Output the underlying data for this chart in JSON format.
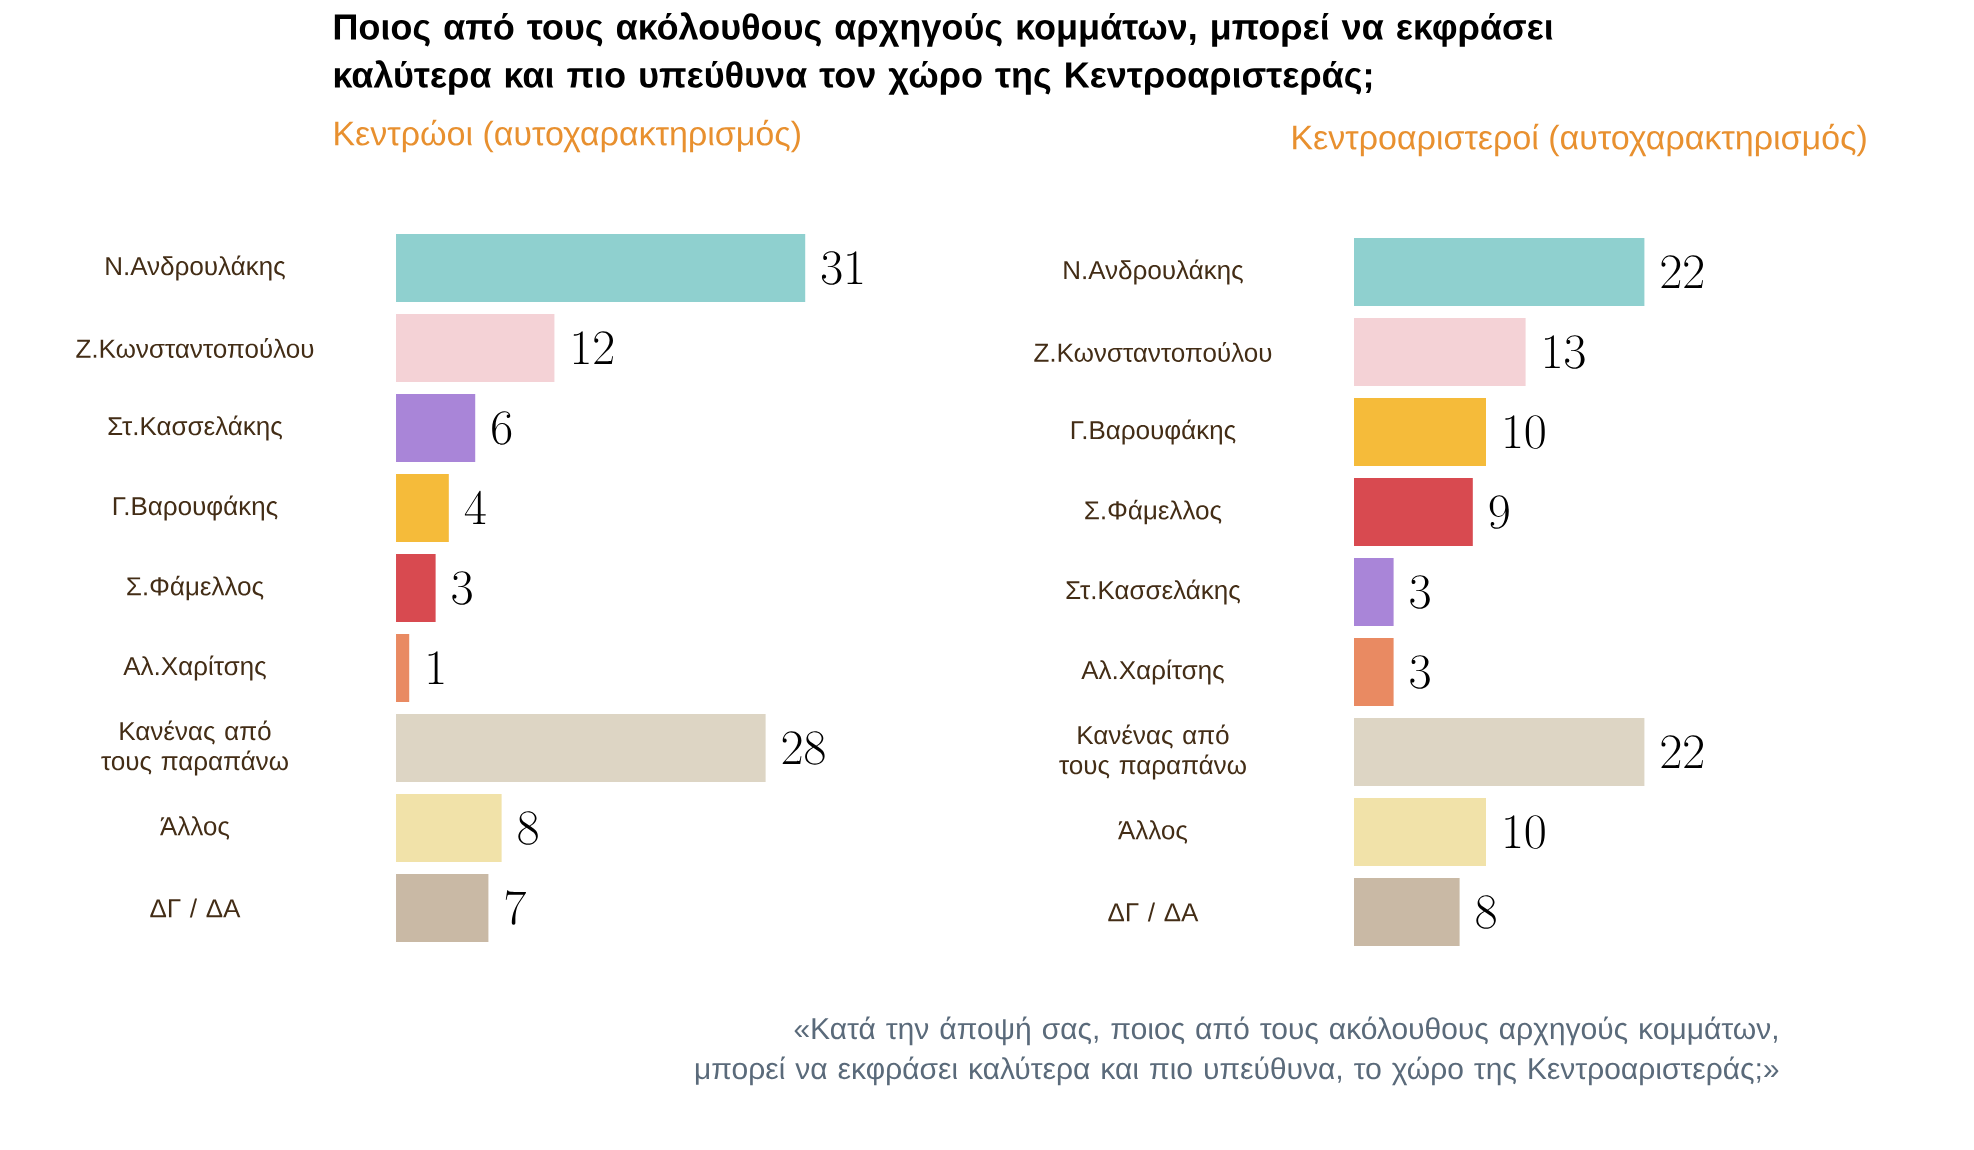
{
  "chart_data": [
    {
      "type": "bar",
      "orientation": "horizontal",
      "data_labels": true,
      "tick_labels": "y",
      "title": "Ποιος από τους ακόλουθους αρχηγούς κομμάτων, μπορεί να εκφράσει καλύτερα και πιο υπεύθυνα τον χώρο της Κεντροαριστεράς;",
      "subtitle": "Κεντρώοι (αυτοχαρακτηρισμός)",
      "categories": [
        "Ν.Ανδρουλάκης",
        "Ζ.Κωνσταντοπούλου",
        "Στ.Κασσελάκης",
        "Γ.Βαρουφάκης",
        "Σ.Φάμελλος",
        "Αλ.Χαρίτσης",
        "Κανένας από τους παραπάνω",
        "Άλλος",
        "ΔΓ / ΔΑ"
      ],
      "values": [
        31,
        12,
        6,
        4,
        3,
        1,
        28,
        8,
        7
      ],
      "colors": [
        "#8fd0cf",
        "#f4d2d6",
        "#a985d8",
        "#f5bb3a",
        "#d84a50",
        "#e98a62",
        "#ddd5c4",
        "#f1e2a9",
        "#c9b9a5"
      ]
    },
    {
      "type": "bar",
      "orientation": "horizontal",
      "data_labels": true,
      "tick_labels": "y",
      "subtitle": "Κεντροαριστεροί (αυτοχαρακτηρισμός)",
      "categories": [
        "Ν.Ανδρουλάκης",
        "Ζ.Κωνσταντοπούλου",
        "Γ.Βαρουφάκης",
        "Σ.Φάμελλος",
        "Στ.Κασσελάκης",
        "Αλ.Χαρίτσης",
        "Κανένας από τους παραπάνω",
        "Άλλος",
        "ΔΓ / ΔΑ"
      ],
      "values": [
        22,
        13,
        10,
        9,
        3,
        3,
        22,
        10,
        8
      ],
      "colors": [
        "#8fd0cf",
        "#f4d2d6",
        "#f5bb3a",
        "#d84a50",
        "#a985d8",
        "#e98a62",
        "#ddd5c4",
        "#f1e2a9",
        "#c9b9a5"
      ],
      "annotations": [
        "«Κατά την άποψή σας, ποιος από τους ακόλουθους αρχηγούς κομμάτων, μπορεί να εκφράσει καλύτερα και πιο υπεύθυνα, το χώρο της Κεντροαριστεράς;»"
      ]
    }
  ]
}
